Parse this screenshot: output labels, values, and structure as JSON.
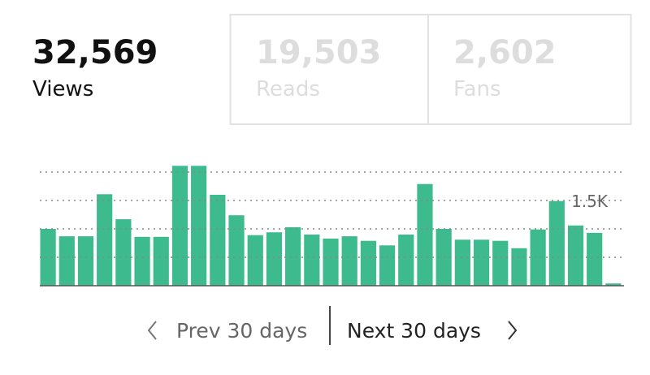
{
  "stats": [
    {
      "number": "32,569",
      "label": "Views"
    },
    {
      "number": "19,503",
      "label": "Reads"
    },
    {
      "number": "2,602",
      "label": "Fans"
    }
  ],
  "chart_data": {
    "type": "bar",
    "color": "#3dba8e",
    "values": [
      1000,
      870,
      870,
      1610,
      1170,
      860,
      860,
      2110,
      2110,
      1600,
      1240,
      890,
      940,
      1030,
      900,
      830,
      870,
      790,
      710,
      900,
      1790,
      1000,
      810,
      810,
      790,
      660,
      990,
      1490,
      1060,
      930,
      40
    ],
    "ylim": [
      0,
      2200
    ],
    "yticks": [
      {
        "value": 500,
        "label": null
      },
      {
        "value": 1000,
        "label": null
      },
      {
        "value": 1500,
        "label": "1.5K"
      },
      {
        "value": 2000,
        "label": null
      }
    ],
    "grid": true
  },
  "nav": {
    "prev": "Prev 30 days",
    "next": "Next 30 days"
  }
}
